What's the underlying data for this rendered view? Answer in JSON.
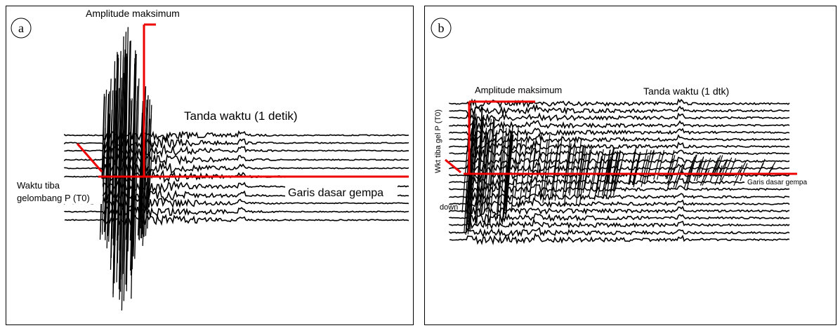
{
  "panels": [
    {
      "label": "a",
      "amplitude": "Amplitude maksimum",
      "time_mark": "Tanda waktu (1 detik)",
      "arrival": [
        "Waktu tiba",
        "gelombang P (T0)"
      ],
      "baseline": "Garis dasar gempa"
    },
    {
      "label": "b",
      "amplitude": "Amplitude maksimum",
      "time_mark": "Tanda waktu (1 dtk)",
      "arrival": [
        "Wkt tiba gel  P (T0)",
        "down"
      ],
      "baseline": "Garis dasar gempa"
    }
  ]
}
